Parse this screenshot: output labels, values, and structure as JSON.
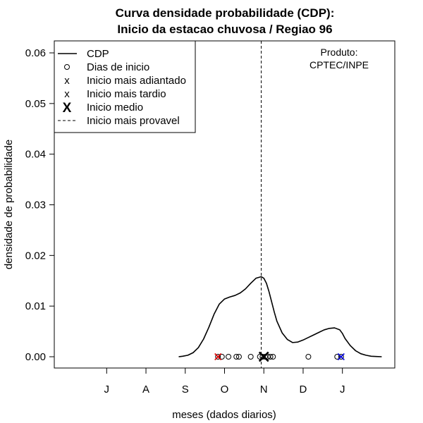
{
  "chart_data": {
    "type": "line",
    "title": [
      "Curva densidade probabilidade (CDP):",
      "Inicio da estacao chuvosa / Regiao 96"
    ],
    "xlabel": "meses (dados diarios)",
    "ylabel": "densidade de probabilidade",
    "ylim": [
      0.0,
      0.06
    ],
    "xlim": [
      -40,
      220
    ],
    "y_ticks": [
      0.0,
      0.01,
      0.02,
      0.03,
      0.04,
      0.05,
      0.06
    ],
    "y_tick_labels": [
      "0.00",
      "0.01",
      "0.02",
      "0.03",
      "0.04",
      "0.05",
      "0.06"
    ],
    "x_ticks": [
      0,
      30,
      60,
      90,
      120,
      150,
      180
    ],
    "x_tick_labels": [
      "J",
      "A",
      "S",
      "O",
      "N",
      "D",
      "J"
    ],
    "annotation": [
      "Produto:",
      "CPTEC/INPE"
    ],
    "legend": {
      "position": "top-left",
      "entries": [
        {
          "label": "CDP",
          "symbol": "line"
        },
        {
          "label": "Dias de inicio",
          "symbol": "o"
        },
        {
          "label": "Inicio mais adiantado",
          "symbol": "x",
          "color": "#e00000"
        },
        {
          "label": "Inicio mais tardio",
          "symbol": "x",
          "color": "#0000e0"
        },
        {
          "label": "Inicio medio",
          "symbol": "X",
          "color": "#000000"
        },
        {
          "label": "Inicio mais provavel",
          "symbol": "dashed"
        }
      ]
    },
    "series": [
      {
        "name": "CDP",
        "x": [
          55,
          58,
          62,
          66,
          70,
          74,
          78,
          82,
          86,
          90,
          94,
          98,
          102,
          106,
          110,
          114,
          118,
          120,
          122,
          124,
          126,
          128,
          130,
          134,
          138,
          142,
          146,
          150,
          154,
          158,
          162,
          166,
          170,
          174,
          178,
          180,
          182,
          186,
          190,
          194,
          198,
          202,
          206,
          210
        ],
        "y": [
          0.0,
          0.0001,
          0.0003,
          0.0008,
          0.0018,
          0.0035,
          0.0058,
          0.0084,
          0.0104,
          0.0114,
          0.0118,
          0.0121,
          0.0126,
          0.0134,
          0.0145,
          0.0155,
          0.0158,
          0.0155,
          0.0145,
          0.0128,
          0.0108,
          0.0088,
          0.007,
          0.0047,
          0.0034,
          0.0028,
          0.0029,
          0.0033,
          0.0038,
          0.0043,
          0.0048,
          0.0053,
          0.0056,
          0.0057,
          0.0053,
          0.0046,
          0.0036,
          0.0022,
          0.0012,
          0.0006,
          0.0003,
          0.0001,
          5e-05,
          0.0
        ]
      }
    ],
    "start_days": [
      85,
      88,
      93,
      99,
      101,
      110,
      117,
      119,
      121,
      123,
      125,
      127,
      154,
      176,
      179
    ],
    "earliest_start": 85,
    "latest_start": 179,
    "mean_start": 120,
    "most_probable_start": 118
  }
}
